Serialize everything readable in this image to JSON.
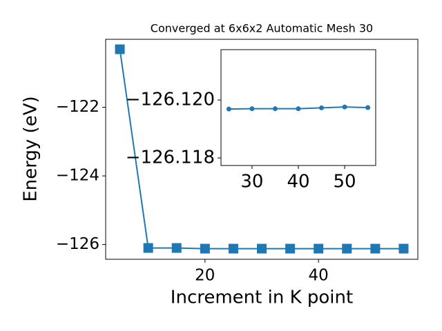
{
  "chart_data": [
    {
      "type": "line",
      "title": "Converged at 6x6x2 Automatic Mesh 30",
      "x_label": "Increment in K point",
      "y_label": "Energy (eV)",
      "x": [
        5,
        10,
        15,
        20,
        25,
        30,
        35,
        40,
        45,
        50,
        55
      ],
      "series": [
        {
          "color": "#1f77b4",
          "marker": "square",
          "values": [
            -120.31,
            -126.1,
            -126.1,
            -126.12,
            -126.12,
            -126.12,
            -126.12,
            -126.12,
            -126.12,
            -126.12,
            -126.12
          ]
        }
      ],
      "xlim": [
        2.5,
        57.5
      ],
      "ylim": [
        -126.43,
        -120.02
      ],
      "xticks": [
        20,
        40
      ],
      "yticks": [
        {
          "value": -122,
          "label": "−122"
        },
        {
          "value": -124,
          "label": "−124"
        },
        {
          "value": -126,
          "label": "−126"
        }
      ]
    },
    {
      "type": "line",
      "x": [
        25,
        30,
        35,
        40,
        45,
        50,
        55
      ],
      "series": [
        {
          "color": "#1f77b4",
          "marker": "circle",
          "values": [
            -126.11969,
            -126.1197,
            -126.1197,
            -126.1197,
            -126.11973,
            -126.11976,
            -126.11974
          ]
        }
      ],
      "xlim": [
        23.3,
        56.7
      ],
      "ylim": [
        -126.11774,
        -126.12174
      ],
      "xticks": [
        30,
        40,
        50
      ],
      "yticks": [
        {
          "value": -126.12,
          "label": "−126.120"
        },
        {
          "value": -126.118,
          "label": "−126.118"
        }
      ]
    }
  ]
}
